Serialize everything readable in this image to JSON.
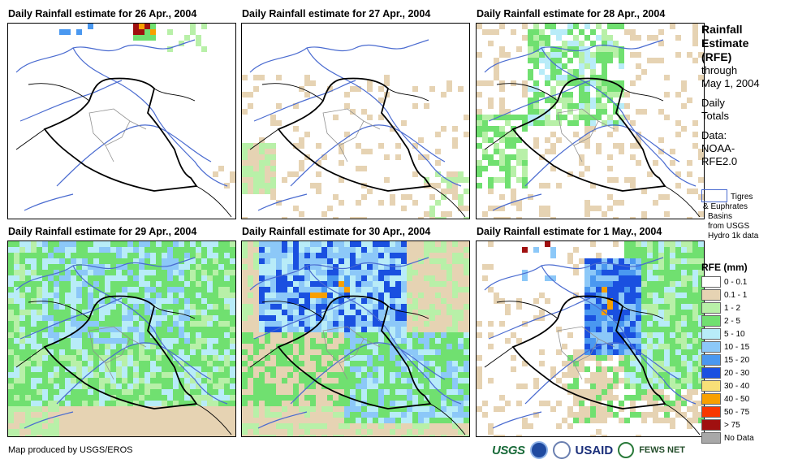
{
  "panels": [
    {
      "title": "Daily Rainfall estimate for 26 Apr., 2004"
    },
    {
      "title": "Daily Rainfall estimate for 27 Apr., 2004"
    },
    {
      "title": "Daily Rainfall estimate for 28 Apr., 2004"
    },
    {
      "title": "Daily Rainfall estimate for 29 Apr., 2004"
    },
    {
      "title": "Daily Rainfall estimate for 30 Apr., 2004"
    },
    {
      "title": "Daily Rainfall estimate for 1 May., 2004"
    }
  ],
  "side": {
    "line1": "Rainfall",
    "line2": "Estimate",
    "line3": "(RFE)",
    "line4": "through",
    "line5": "May 1, 2004",
    "line6": "Daily",
    "line7": "Totals",
    "line8": "Data:",
    "line9": "NOAA-",
    "line10": "RFE2.0"
  },
  "basin": {
    "l1": "Tigres",
    "l2": "& Euphrates",
    "l3": "Basins",
    "l4": "from USGS",
    "l5": "Hydro 1k data",
    "color": "#4a6bd0"
  },
  "legend": {
    "title": "RFE (mm)",
    "items": [
      {
        "label": "0 - 0.1",
        "color": "#ffffff"
      },
      {
        "label": "0.1 - 1",
        "color": "#e6d3b3"
      },
      {
        "label": "1 - 2",
        "color": "#b8f0a8"
      },
      {
        "label": "2 - 5",
        "color": "#70e070"
      },
      {
        "label": "5 - 10",
        "color": "#b8ecf8"
      },
      {
        "label": "10 - 15",
        "color": "#8cc8f8"
      },
      {
        "label": "15 - 20",
        "color": "#4a98f0"
      },
      {
        "label": "20 - 30",
        "color": "#1a50e0"
      },
      {
        "label": "30 - 40",
        "color": "#f8e078"
      },
      {
        "label": "40 - 50",
        "color": "#f8a000"
      },
      {
        "label": "50 - 75",
        "color": "#f83800"
      },
      {
        "label": "> 75",
        "color": "#a01010"
      },
      {
        "label": "No Data",
        "color": "#a8a8a8"
      }
    ]
  },
  "footer": {
    "credit": "Map produced by USGS/EROS",
    "usgs": "USGS",
    "usaid": "USAID",
    "fews": "FEWS NET"
  }
}
